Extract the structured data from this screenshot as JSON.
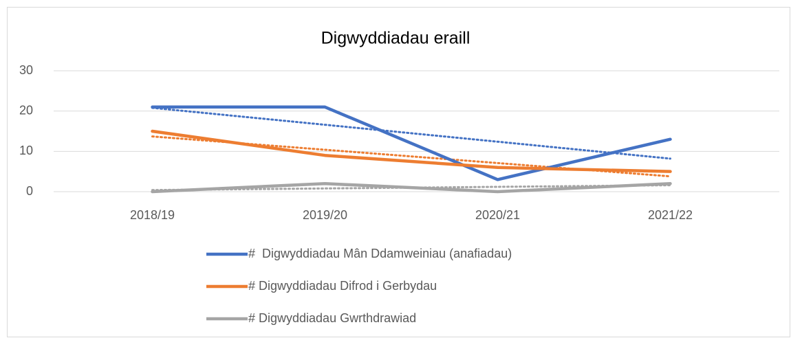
{
  "chart_data": {
    "type": "line",
    "title": "Digwyddiadau eraill",
    "categories": [
      "2018/19",
      "2019/20",
      "2020/21",
      "2021/22"
    ],
    "series": [
      {
        "name": "#  Digwyddiadau Mân Ddamweiniau (anafiadau)",
        "color": "#4472c4",
        "values": [
          21,
          21,
          3,
          13
        ],
        "trendline": true
      },
      {
        "name": "# Digwyddiadau Difrod i Gerbydau",
        "color": "#ed7d31",
        "values": [
          15,
          9,
          6,
          5
        ],
        "trendline": true
      },
      {
        "name": "# Digwyddiadau Gwrthdrawiad",
        "color": "#a5a5a5",
        "values": [
          0,
          2,
          0,
          2
        ],
        "trendline": true
      }
    ],
    "ylim": [
      0,
      30
    ],
    "yticks": [
      0,
      10,
      20,
      30
    ],
    "grid": true,
    "legend": "bottom"
  }
}
